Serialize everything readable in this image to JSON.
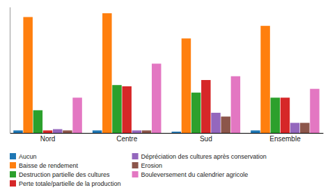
{
  "chart_data": {
    "type": "bar",
    "categories": [
      "Nord",
      "Centre",
      "Sud",
      "Ensemble"
    ],
    "series": [
      {
        "name": "Aucun",
        "values": [
          2,
          2,
          1,
          2
        ]
      },
      {
        "name": "Baisse de rendement",
        "values": [
          92,
          95,
          75,
          85
        ]
      },
      {
        "name": "Destruction partielle des cultures",
        "values": [
          18,
          38,
          32,
          28
        ]
      },
      {
        "name": "Perte totale/partielle de la production",
        "values": [
          2,
          37,
          42,
          28
        ]
      },
      {
        "name": "Dépréciation des cultures après conservation",
        "values": [
          3,
          2,
          16,
          8
        ]
      },
      {
        "name": "Erosion",
        "values": [
          2,
          2,
          13,
          8
        ]
      },
      {
        "name": "Bouleversement du calendrier agricole",
        "values": [
          28,
          55,
          45,
          35
        ]
      }
    ],
    "ylim": [
      0,
      100
    ],
    "tick_labels": "x",
    "legend": "bottom"
  }
}
